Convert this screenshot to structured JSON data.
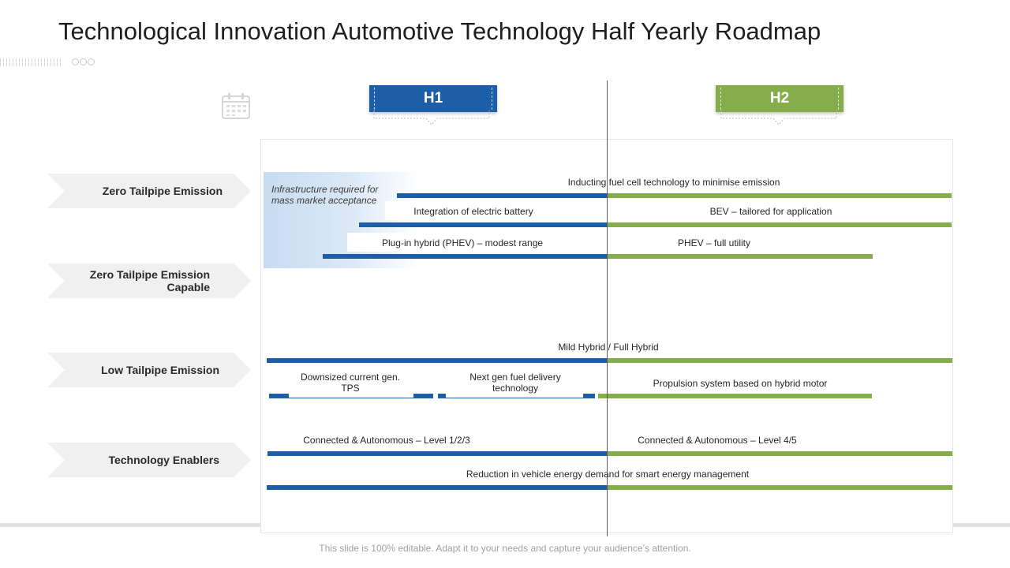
{
  "title": "Technological Innovation Automotive Technology Half Yearly Roadmap",
  "headers": {
    "h1": "H1",
    "h2": "H2"
  },
  "categories": [
    "Zero Tailpipe Emission",
    "Zero Tailpipe Emission Capable",
    "Low Tailpipe Emission",
    "Technology Enablers"
  ],
  "highlight_note": "Infrastructure required for mass market acceptance",
  "items": {
    "fuel_cell": "Inducting fuel cell technology to minimise emission",
    "electric_battery": "Integration of electric battery",
    "bev": "BEV – tailored for application",
    "phev_modest": "Plug-in hybrid (PHEV) – modest range",
    "phev_full": "PHEV – full utility",
    "mild_hybrid": "Mild Hybrid / Full Hybrid",
    "downsized": "Downsized current gen. TPS",
    "next_gen_fuel": "Next gen fuel delivery technology",
    "propulsion": "Propulsion system based on hybrid motor",
    "connected_l123": "Connected & Autonomous – Level 1/2/3",
    "connected_l45": "Connected & Autonomous – Level 4/5",
    "energy_demand": "Reduction in vehicle energy demand for smart energy management"
  },
  "footer": "This slide is 100% editable. Adapt it to your needs and capture your audience’s attention.",
  "colors": {
    "h1": "#1d5ea8",
    "h2": "#86ad4b",
    "category_arrow": "#f0f0f0"
  },
  "icons": {
    "calendar": "calendar-icon"
  }
}
